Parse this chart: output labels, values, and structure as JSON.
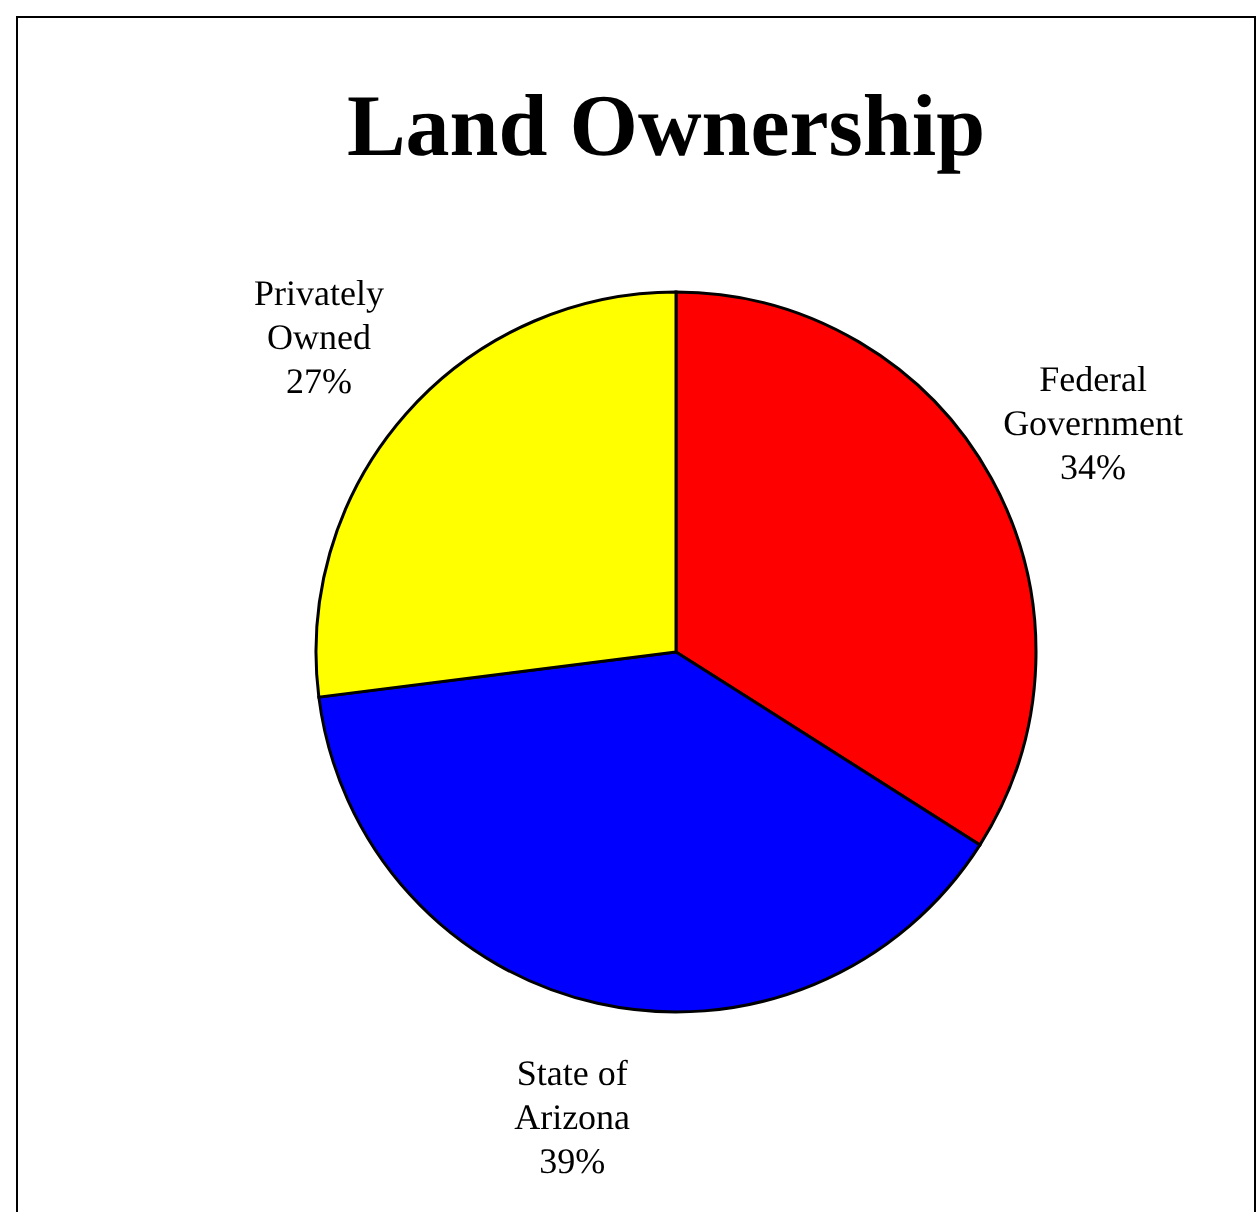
{
  "chart_data": {
    "type": "pie",
    "title": "Land Ownership",
    "categories": [
      "Federal Government",
      "State of Arizona",
      "Privately Owned"
    ],
    "values": [
      34,
      39,
      27
    ],
    "colors": [
      "#ff0000",
      "#0000ff",
      "#ffff00"
    ],
    "value_labels": [
      "34%",
      "39%",
      "27%"
    ]
  }
}
